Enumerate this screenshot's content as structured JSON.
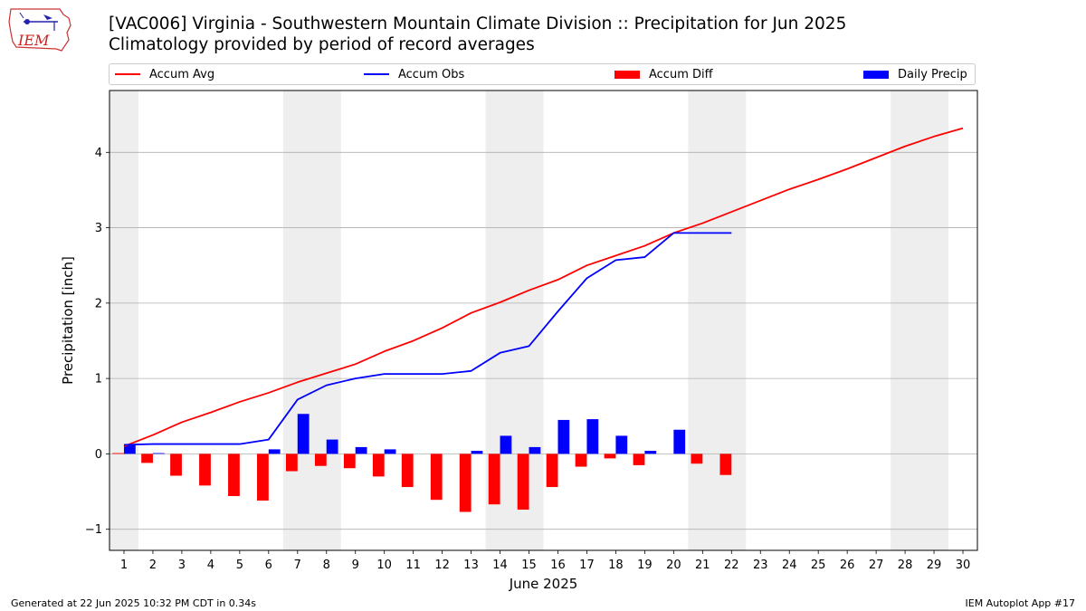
{
  "header": {
    "title": "[VAC006] Virginia - Southwestern Mountain Climate Division :: Precipitation for Jun 2025",
    "subtitle": "Climatology provided by period of record averages",
    "logo_text": "IEM"
  },
  "legend": {
    "position": "top",
    "items": [
      {
        "label": "Accum Avg",
        "kind": "line",
        "color": "#ff0000"
      },
      {
        "label": "Accum Obs",
        "kind": "line",
        "color": "#0000ff"
      },
      {
        "label": "Accum Diff",
        "kind": "bar",
        "color": "#ff0000"
      },
      {
        "label": "Daily Precip",
        "kind": "bar",
        "color": "#0000ff"
      }
    ]
  },
  "footer": {
    "left": "Generated at 22 Jun 2025 10:32 PM CDT in 0.34s",
    "right": "IEM Autoplot App #17"
  },
  "chart_data": {
    "type": "bar",
    "xlabel": "June 2025",
    "ylabel": "Precipitation [inch]",
    "xlim": [
      0.5,
      30.5
    ],
    "ylim": [
      -1.28,
      4.82
    ],
    "xticks": [
      1,
      2,
      3,
      4,
      5,
      6,
      7,
      8,
      9,
      10,
      11,
      12,
      13,
      14,
      15,
      16,
      17,
      18,
      19,
      20,
      21,
      22,
      23,
      24,
      25,
      26,
      27,
      28,
      29,
      30
    ],
    "yticks": [
      -1,
      0,
      1,
      2,
      3,
      4
    ],
    "ytick_labels": [
      "−1",
      "0",
      "1",
      "2",
      "3",
      "4"
    ],
    "grid": "horizontal",
    "weekend_shading": [
      [
        0.5,
        1.5
      ],
      [
        6.5,
        8.5
      ],
      [
        13.5,
        15.5
      ],
      [
        20.5,
        22.5
      ],
      [
        27.5,
        29.5
      ]
    ],
    "accum_avg": {
      "color": "#ff0000",
      "x": [
        1,
        2,
        3,
        4,
        5,
        6,
        7,
        8,
        9,
        10,
        11,
        12,
        13,
        14,
        15,
        16,
        17,
        18,
        19,
        20,
        21,
        22,
        23,
        24,
        25,
        26,
        27,
        28,
        29,
        30
      ],
      "values": [
        0.1,
        0.25,
        0.42,
        0.55,
        0.69,
        0.81,
        0.95,
        1.07,
        1.19,
        1.36,
        1.5,
        1.67,
        1.87,
        2.01,
        2.17,
        2.31,
        2.5,
        2.63,
        2.76,
        2.93,
        3.06,
        3.21,
        3.36,
        3.51,
        3.64,
        3.78,
        3.93,
        4.08,
        4.21,
        4.32
      ]
    },
    "accum_obs": {
      "color": "#0000ff",
      "x": [
        1,
        2,
        3,
        4,
        5,
        6,
        7,
        8,
        9,
        10,
        11,
        12,
        13,
        14,
        15,
        16,
        17,
        18,
        19,
        20,
        21,
        22
      ],
      "values": [
        0.12,
        0.13,
        0.13,
        0.13,
        0.13,
        0.19,
        0.72,
        0.91,
        1.0,
        1.06,
        1.06,
        1.06,
        1.1,
        1.34,
        1.43,
        1.89,
        2.33,
        2.57,
        2.61,
        2.93,
        2.93,
        2.93
      ]
    },
    "accum_diff": {
      "color": "#ff0000",
      "x": [
        1,
        2,
        3,
        4,
        5,
        6,
        7,
        8,
        9,
        10,
        11,
        12,
        13,
        14,
        15,
        16,
        17,
        18,
        19,
        20,
        21,
        22
      ],
      "values": [
        0.01,
        -0.12,
        -0.29,
        -0.42,
        -0.56,
        -0.62,
        -0.23,
        -0.16,
        -0.19,
        -0.3,
        -0.44,
        -0.61,
        -0.77,
        -0.67,
        -0.74,
        -0.44,
        -0.17,
        -0.06,
        -0.15,
        0.0,
        -0.13,
        -0.28
      ]
    },
    "daily_precip": {
      "color": "#0000ff",
      "x": [
        1,
        2,
        3,
        4,
        5,
        6,
        7,
        8,
        9,
        10,
        11,
        12,
        13,
        14,
        15,
        16,
        17,
        18,
        19,
        20,
        21,
        22
      ],
      "values": [
        0.12,
        0.01,
        0.0,
        0.0,
        0.0,
        0.06,
        0.53,
        0.19,
        0.09,
        0.06,
        0.0,
        0.0,
        0.04,
        0.24,
        0.09,
        0.45,
        0.46,
        0.24,
        0.04,
        0.32,
        0.0,
        0.0
      ]
    }
  }
}
